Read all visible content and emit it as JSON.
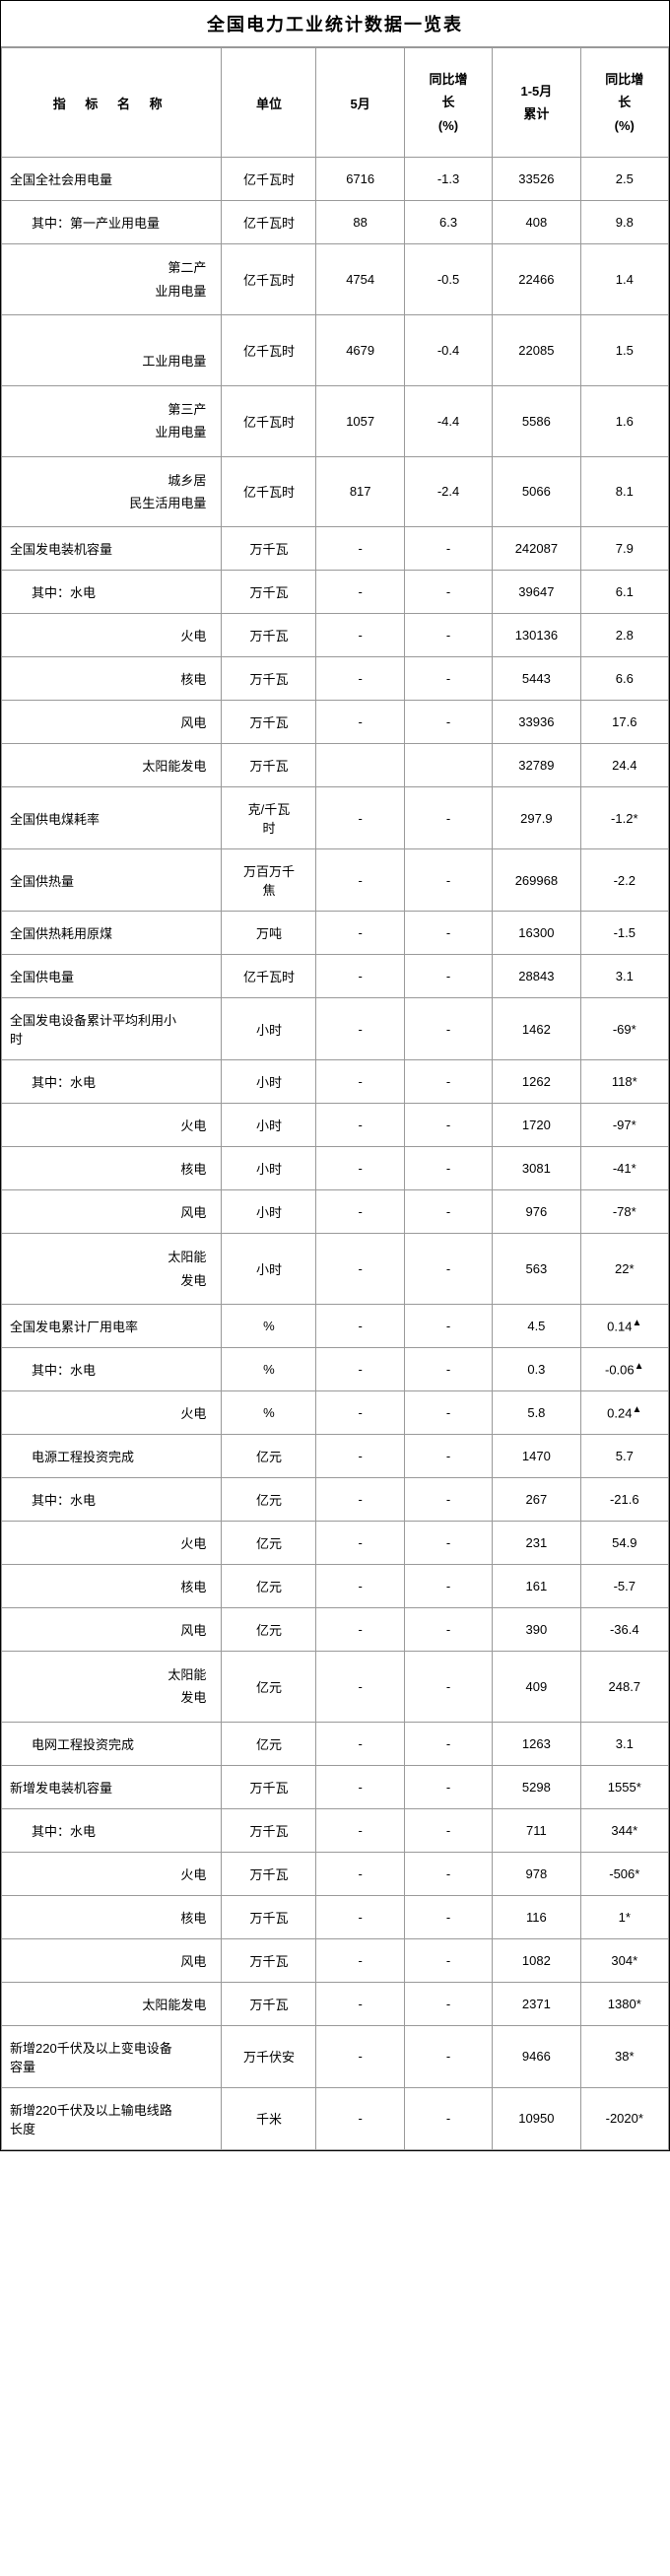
{
  "title": "全国电力工业统计数据一览表",
  "headers": {
    "indicator": "指 标 名 称",
    "unit": "单位",
    "may": "5月",
    "yoy1_line1": "同比增",
    "yoy1_line2": "长",
    "yoy1_line3": "(%)",
    "cum_line1": "1-5月",
    "cum_line2": "累计",
    "yoy2_line1": "同比增",
    "yoy2_line2": "长",
    "yoy2_line3": "(%)"
  },
  "rows": [
    {
      "indicator": "全国全社会用电量",
      "class": "indicator-cell",
      "unit": "亿千瓦时",
      "may": "6716",
      "yoy1": "-1.3",
      "cum": "33526",
      "yoy2": "2.5"
    },
    {
      "indicator": "其中：第一产业用电量",
      "class": "indicator-cell indent-1",
      "unit": "亿千瓦时",
      "may": "88",
      "yoy1": "6.3",
      "cum": "408",
      "yoy2": "9.8"
    },
    {
      "indicator": "第二产<br>业用电量",
      "class": "indicator-cell indent-sub",
      "unit": "亿千瓦时",
      "may": "4754",
      "yoy1": "-0.5",
      "cum": "22466",
      "yoy2": "1.4"
    },
    {
      "indicator": "<br>工业用电量",
      "class": "indicator-cell indent-sub",
      "unit": "亿千瓦时",
      "may": "4679",
      "yoy1": "-0.4",
      "cum": "22085",
      "yoy2": "1.5"
    },
    {
      "indicator": "第三产<br>业用电量",
      "class": "indicator-cell indent-sub",
      "unit": "亿千瓦时",
      "may": "1057",
      "yoy1": "-4.4",
      "cum": "5586",
      "yoy2": "1.6"
    },
    {
      "indicator": "城乡居<br>民生活用电量",
      "class": "indicator-cell indent-sub",
      "unit": "亿千瓦时",
      "may": "817",
      "yoy1": "-2.4",
      "cum": "5066",
      "yoy2": "8.1"
    },
    {
      "indicator": "全国发电装机容量",
      "class": "indicator-cell",
      "unit": "万千瓦",
      "may": "-",
      "yoy1": "-",
      "cum": "242087",
      "yoy2": "7.9"
    },
    {
      "indicator": "其中：水电",
      "class": "indicator-cell indent-1",
      "unit": "万千瓦",
      "may": "-",
      "yoy1": "-",
      "cum": "39647",
      "yoy2": "6.1"
    },
    {
      "indicator": "火电",
      "class": "indicator-cell indent-2",
      "unit": "万千瓦",
      "may": "-",
      "yoy1": "-",
      "cum": "130136",
      "yoy2": "2.8"
    },
    {
      "indicator": "核电",
      "class": "indicator-cell indent-2",
      "unit": "万千瓦",
      "may": "-",
      "yoy1": "-",
      "cum": "5443",
      "yoy2": "6.6"
    },
    {
      "indicator": "风电",
      "class": "indicator-cell indent-2",
      "unit": "万千瓦",
      "may": "-",
      "yoy1": "-",
      "cum": "33936",
      "yoy2": "17.6"
    },
    {
      "indicator": "太阳能发电",
      "class": "indicator-cell indent-2",
      "unit": "万千瓦",
      "may": "",
      "yoy1": "",
      "cum": "32789",
      "yoy2": "24.4"
    },
    {
      "indicator": "全国供电煤耗率",
      "class": "indicator-cell",
      "unit": "克/千瓦<br>时",
      "may": "-",
      "yoy1": "-",
      "cum": "297.9",
      "yoy2": "-1.2*"
    },
    {
      "indicator": "全国供热量",
      "class": "indicator-cell",
      "unit": "万百万千<br>焦",
      "may": "-",
      "yoy1": "-",
      "cum": "269968",
      "yoy2": "-2.2"
    },
    {
      "indicator": "全国供热耗用原煤",
      "class": "indicator-cell",
      "unit": "万吨",
      "may": "-",
      "yoy1": "-",
      "cum": "16300",
      "yoy2": "-1.5"
    },
    {
      "indicator": "全国供电量",
      "class": "indicator-cell",
      "unit": "亿千瓦时",
      "may": "-",
      "yoy1": "-",
      "cum": "28843",
      "yoy2": "3.1"
    },
    {
      "indicator": "全国发电设备累计平均利用小<br>时",
      "class": "indicator-cell",
      "unit": "小时",
      "may": "-",
      "yoy1": "-",
      "cum": "1462",
      "yoy2": "-69*"
    },
    {
      "indicator": "其中：水电",
      "class": "indicator-cell indent-1",
      "unit": "小时",
      "may": "-",
      "yoy1": "-",
      "cum": "1262",
      "yoy2": "118*"
    },
    {
      "indicator": "火电",
      "class": "indicator-cell indent-2",
      "unit": "小时",
      "may": "-",
      "yoy1": "-",
      "cum": "1720",
      "yoy2": "-97*"
    },
    {
      "indicator": "核电",
      "class": "indicator-cell indent-2",
      "unit": "小时",
      "may": "-",
      "yoy1": "-",
      "cum": "3081",
      "yoy2": "-41*"
    },
    {
      "indicator": "风电",
      "class": "indicator-cell indent-2",
      "unit": "小时",
      "may": "-",
      "yoy1": "-",
      "cum": "976",
      "yoy2": "-78*"
    },
    {
      "indicator": "太阳能<br>发电",
      "class": "indicator-cell indent-sub",
      "unit": "小时",
      "may": "-",
      "yoy1": "-",
      "cum": "563",
      "yoy2": "22*"
    },
    {
      "indicator": "全国发电累计厂用电率",
      "class": "indicator-cell",
      "unit": "%",
      "may": "-",
      "yoy1": "-",
      "cum": "4.5",
      "yoy2": "0.14<span class=\"triangle\">▲</span>"
    },
    {
      "indicator": "其中：水电",
      "class": "indicator-cell indent-1",
      "unit": "%",
      "may": "-",
      "yoy1": "-",
      "cum": "0.3",
      "yoy2": "-0.06<span class=\"triangle\">▲</span>"
    },
    {
      "indicator": "火电",
      "class": "indicator-cell indent-2",
      "unit": "%",
      "may": "-",
      "yoy1": "-",
      "cum": "5.8",
      "yoy2": "0.24<span class=\"triangle\">▲</span>"
    },
    {
      "indicator": "电源工程投资完成",
      "class": "indicator-cell indent-1",
      "unit": "亿元",
      "may": "-",
      "yoy1": "-",
      "cum": "1470",
      "yoy2": "5.7"
    },
    {
      "indicator": "其中：水电",
      "class": "indicator-cell indent-1",
      "unit": "亿元",
      "may": "-",
      "yoy1": "-",
      "cum": "267",
      "yoy2": "-21.6"
    },
    {
      "indicator": "火电",
      "class": "indicator-cell indent-2",
      "unit": "亿元",
      "may": "-",
      "yoy1": "-",
      "cum": "231",
      "yoy2": "54.9"
    },
    {
      "indicator": "核电",
      "class": "indicator-cell indent-2",
      "unit": "亿元",
      "may": "-",
      "yoy1": "-",
      "cum": "161",
      "yoy2": "-5.7"
    },
    {
      "indicator": "风电",
      "class": "indicator-cell indent-2",
      "unit": "亿元",
      "may": "-",
      "yoy1": "-",
      "cum": "390",
      "yoy2": "-36.4"
    },
    {
      "indicator": "太阳能<br>发电",
      "class": "indicator-cell indent-sub",
      "unit": "亿元",
      "may": "-",
      "yoy1": "-",
      "cum": "409",
      "yoy2": "248.7"
    },
    {
      "indicator": "电网工程投资完成",
      "class": "indicator-cell indent-1",
      "unit": "亿元",
      "may": "-",
      "yoy1": "-",
      "cum": "1263",
      "yoy2": "3.1"
    },
    {
      "indicator": "新增发电装机容量",
      "class": "indicator-cell",
      "unit": "万千瓦",
      "may": "-",
      "yoy1": "-",
      "cum": "5298",
      "yoy2": "1555*"
    },
    {
      "indicator": "其中：水电",
      "class": "indicator-cell indent-1",
      "unit": "万千瓦",
      "may": "-",
      "yoy1": "-",
      "cum": "711",
      "yoy2": "344*"
    },
    {
      "indicator": "火电",
      "class": "indicator-cell indent-2",
      "unit": "万千瓦",
      "may": "-",
      "yoy1": "-",
      "cum": "978",
      "yoy2": "-506*"
    },
    {
      "indicator": "核电",
      "class": "indicator-cell indent-2",
      "unit": "万千瓦",
      "may": "-",
      "yoy1": "-",
      "cum": "116",
      "yoy2": "1*"
    },
    {
      "indicator": "风电",
      "class": "indicator-cell indent-2",
      "unit": "万千瓦",
      "may": "-",
      "yoy1": "-",
      "cum": "1082",
      "yoy2": "304*"
    },
    {
      "indicator": "太阳能发电",
      "class": "indicator-cell indent-2",
      "unit": "万千瓦",
      "may": "-",
      "yoy1": "-",
      "cum": "2371",
      "yoy2": "1380*"
    },
    {
      "indicator": "新增220千伏及以上变电设备<br>容量",
      "class": "indicator-cell",
      "unit": "万千伏安",
      "may": "-",
      "yoy1": "-",
      "cum": "9466",
      "yoy2": "38*"
    },
    {
      "indicator": "新增220千伏及以上输电线路<br>长度",
      "class": "indicator-cell",
      "unit": "千米",
      "may": "-",
      "yoy1": "-",
      "cum": "10950",
      "yoy2": "-2020*"
    }
  ]
}
